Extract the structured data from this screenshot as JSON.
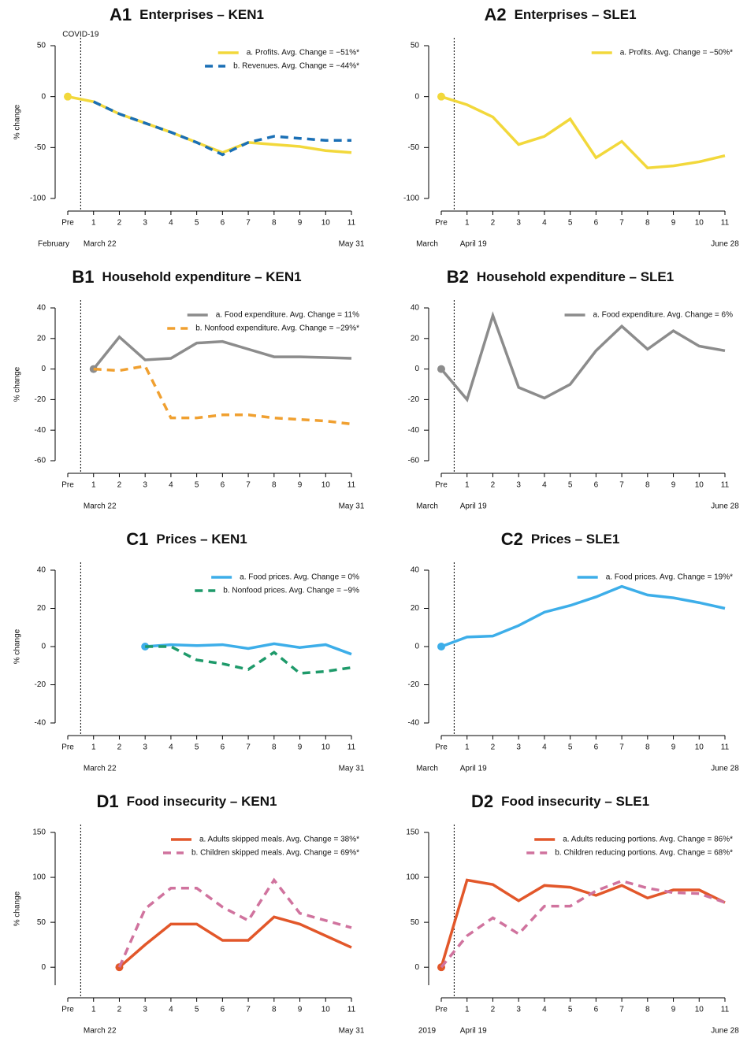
{
  "chart_data": [
    {
      "type": "line",
      "panel": "A1",
      "title": "Enterprises – KEN1",
      "ylabel": "% change",
      "event_label": "COVID-19",
      "categories": [
        "Pre",
        "1",
        "2",
        "3",
        "4",
        "5",
        "6",
        "7",
        "8",
        "9",
        "10",
        "11"
      ],
      "x_dates": [
        "February",
        "March 22",
        null,
        null,
        null,
        null,
        null,
        null,
        null,
        null,
        null,
        "May 31"
      ],
      "ylim": [
        -100,
        50
      ],
      "yticks": [
        -100,
        -50,
        0,
        50
      ],
      "series": [
        {
          "name": "a. Profits. Avg. Change = −51%*",
          "color": "#f2d83b",
          "style": "solid",
          "values": [
            0,
            -5,
            -17,
            -26,
            -35,
            -45,
            -55,
            -45,
            -47,
            -49,
            -53,
            -55
          ]
        },
        {
          "name": "b. Revenues. Avg. Change = −44%*",
          "color": "#1a6fb5",
          "style": "dashed",
          "values": [
            null,
            -5,
            -17,
            -26,
            -35,
            -45,
            -57,
            -45,
            -39,
            -41,
            -43,
            -43
          ]
        }
      ]
    },
    {
      "type": "line",
      "panel": "A2",
      "title": "Enterprises – SLE1",
      "categories": [
        "Pre",
        "1",
        "2",
        "3",
        "4",
        "5",
        "6",
        "7",
        "8",
        "9",
        "10",
        "11"
      ],
      "x_dates": [
        "March",
        "April 19",
        null,
        null,
        null,
        null,
        null,
        null,
        null,
        null,
        null,
        "June 28"
      ],
      "ylim": [
        -100,
        50
      ],
      "yticks": [
        -100,
        -50,
        0,
        50
      ],
      "series": [
        {
          "name": "a. Profits. Avg. Change = −50%*",
          "color": "#f2d83b",
          "style": "solid",
          "values": [
            0,
            -8,
            -20,
            -47,
            -39,
            -22,
            -60,
            -44,
            -70,
            -68,
            -64,
            -58
          ]
        }
      ]
    },
    {
      "type": "line",
      "panel": "B1",
      "title": "Household expenditure – KEN1",
      "ylabel": "% change",
      "categories": [
        "Pre",
        "1",
        "2",
        "3",
        "4",
        "5",
        "6",
        "7",
        "8",
        "9",
        "10",
        "11"
      ],
      "x_dates": [
        null,
        "March 22",
        null,
        null,
        null,
        null,
        null,
        null,
        null,
        null,
        null,
        "May 31"
      ],
      "ylim": [
        -60,
        40
      ],
      "yticks": [
        -60,
        -40,
        -20,
        0,
        20,
        40
      ],
      "series": [
        {
          "name": "a. Food expenditure. Avg. Change = 11%",
          "color": "#8c8c8c",
          "style": "solid",
          "values": [
            null,
            0,
            21,
            6,
            7,
            17,
            18,
            13,
            8,
            8,
            7.5,
            7
          ]
        },
        {
          "name": "b. Nonfood expenditure. Avg. Change = −29%*",
          "color": "#f0a030",
          "style": "dashed",
          "values": [
            null,
            0,
            -1,
            2,
            -32,
            -32,
            -30,
            -30,
            -32,
            -33,
            -34,
            -36
          ]
        }
      ]
    },
    {
      "type": "line",
      "panel": "B2",
      "title": "Household expenditure – SLE1",
      "categories": [
        "Pre",
        "1",
        "2",
        "3",
        "4",
        "5",
        "6",
        "7",
        "8",
        "9",
        "10",
        "11"
      ],
      "x_dates": [
        "March",
        "April 19",
        null,
        null,
        null,
        null,
        null,
        null,
        null,
        null,
        null,
        "June 28"
      ],
      "ylim": [
        -60,
        40
      ],
      "yticks": [
        -60,
        -40,
        -20,
        0,
        20,
        40
      ],
      "series": [
        {
          "name": "a. Food expenditure. Avg. Change = 6%",
          "color": "#8c8c8c",
          "style": "solid",
          "values": [
            0,
            -20,
            35,
            -12,
            -19,
            -10,
            12,
            28,
            13,
            25,
            15,
            12
          ]
        }
      ]
    },
    {
      "type": "line",
      "panel": "C1",
      "title": "Prices – KEN1",
      "ylabel": "% change",
      "categories": [
        "Pre",
        "1",
        "2",
        "3",
        "4",
        "5",
        "6",
        "7",
        "8",
        "9",
        "10",
        "11"
      ],
      "x_dates": [
        null,
        "March 22",
        null,
        null,
        null,
        null,
        null,
        null,
        null,
        null,
        null,
        "May 31"
      ],
      "ylim": [
        -40,
        40
      ],
      "yticks": [
        -40,
        -20,
        0,
        20,
        40
      ],
      "series": [
        {
          "name": "a. Food prices. Avg. Change = 0%",
          "color": "#3daee9",
          "style": "solid",
          "values": [
            null,
            null,
            null,
            0,
            1,
            0.5,
            1,
            -1,
            1.5,
            -0.5,
            1,
            -4
          ]
        },
        {
          "name": "b. Nonfood prices. Avg. Change = −9%",
          "color": "#1e9a6a",
          "style": "dashed",
          "values": [
            null,
            null,
            null,
            0,
            0,
            -7,
            -9,
            -12,
            -3,
            -14,
            -13,
            -11
          ]
        }
      ]
    },
    {
      "type": "line",
      "panel": "C2",
      "title": "Prices – SLE1",
      "categories": [
        "Pre",
        "1",
        "2",
        "3",
        "4",
        "5",
        "6",
        "7",
        "8",
        "9",
        "10",
        "11"
      ],
      "x_dates": [
        "March",
        "April 19",
        null,
        null,
        null,
        null,
        null,
        null,
        null,
        null,
        null,
        "June 28"
      ],
      "ylim": [
        -40,
        40
      ],
      "yticks": [
        -40,
        -20,
        0,
        20,
        40
      ],
      "series": [
        {
          "name": "a. Food prices. Avg. Change = 19%*",
          "color": "#3daee9",
          "style": "solid",
          "values": [
            0,
            5,
            5.5,
            11,
            18,
            21.5,
            26,
            31.5,
            27,
            25.5,
            23,
            20
          ]
        }
      ]
    },
    {
      "type": "line",
      "panel": "D1",
      "title": "Food insecurity – KEN1",
      "ylabel": "% change",
      "categories": [
        "Pre",
        "1",
        "2",
        "3",
        "4",
        "5",
        "6",
        "7",
        "8",
        "9",
        "10",
        "11"
      ],
      "x_dates": [
        null,
        "March 22",
        null,
        null,
        null,
        null,
        null,
        null,
        null,
        null,
        null,
        "May 31"
      ],
      "ylim": [
        -20,
        150
      ],
      "yticks": [
        0,
        50,
        100,
        150
      ],
      "series": [
        {
          "name": "a. Adults skipped meals. Avg. Change = 38%*",
          "color": "#e2572a",
          "style": "solid",
          "values": [
            null,
            null,
            0,
            25,
            48,
            48,
            30,
            30,
            56,
            48,
            35,
            22
          ]
        },
        {
          "name": "b. Children skipped meals. Avg. Change = 69%*",
          "color": "#d0739e",
          "style": "dashed",
          "values": [
            null,
            null,
            0,
            65,
            88,
            88,
            67,
            52,
            97,
            60,
            52,
            44
          ]
        }
      ]
    },
    {
      "type": "line",
      "panel": "D2",
      "title": "Food insecurity – SLE1",
      "categories": [
        "Pre",
        "1",
        "2",
        "3",
        "4",
        "5",
        "6",
        "7",
        "8",
        "9",
        "10",
        "11"
      ],
      "x_dates": [
        "2019",
        "April 19",
        null,
        null,
        null,
        null,
        null,
        null,
        null,
        null,
        null,
        "June 28"
      ],
      "ylim": [
        -20,
        150
      ],
      "yticks": [
        0,
        50,
        100,
        150
      ],
      "series": [
        {
          "name": "a. Adults reducing portions. Avg. Change = 86%*",
          "color": "#e2572a",
          "style": "solid",
          "values": [
            0,
            97,
            92,
            74,
            91,
            89,
            80,
            91,
            77,
            86,
            86,
            72
          ]
        },
        {
          "name": "b. Children reducing portions. Avg. Change = 68%*",
          "color": "#d0739e",
          "style": "dashed",
          "values": [
            0,
            35,
            55,
            37,
            68,
            68,
            85,
            96,
            88,
            83,
            82,
            72
          ]
        }
      ]
    }
  ]
}
